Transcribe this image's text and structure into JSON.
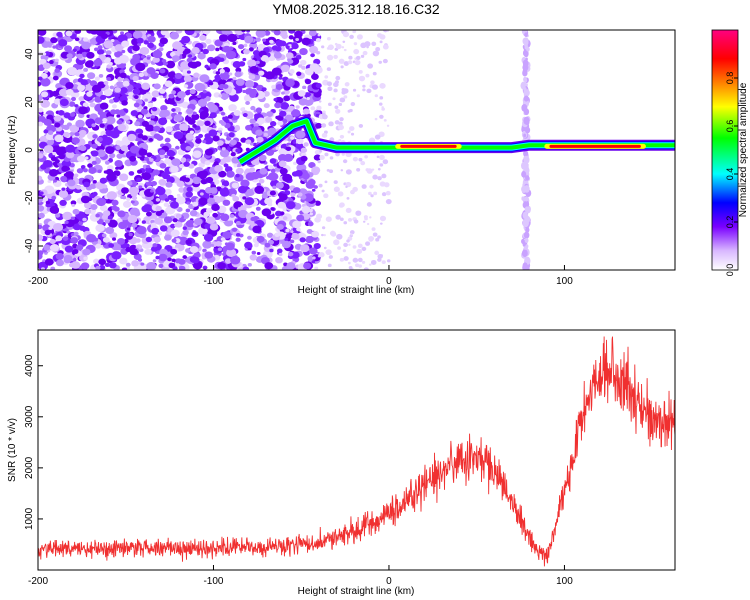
{
  "title": "YM08.2025.312.18.16.C32",
  "chart_data": [
    {
      "type": "heatmap",
      "xlabel": "Height of straight line (km)",
      "ylabel": "Frequency (Hz)",
      "xlim": [
        -200,
        163
      ],
      "ylim": [
        -50,
        50
      ],
      "xticks": [
        "-200",
        "-100",
        "0",
        "100"
      ],
      "yticks": [
        "-40",
        "-20",
        "0",
        "20",
        "40"
      ],
      "colorbar": {
        "label": "Normalized spectral amplitude",
        "range": [
          0,
          1
        ],
        "ticks": [
          "0.0",
          "0.2",
          "0.4",
          "0.6",
          "0.8"
        ],
        "colormap": [
          "#ffffff",
          "#d9b8ff",
          "#7a00ff",
          "#0000ff",
          "#00ffff",
          "#00ff00",
          "#ffff00",
          "#ff8000",
          "#ff0000",
          "#ff0080"
        ]
      },
      "ridge": {
        "description_points": [
          [
            -85,
            -5
          ],
          [
            -65,
            4
          ],
          [
            -55,
            10
          ],
          [
            -47,
            12
          ],
          [
            -42,
            3
          ],
          [
            -30,
            1
          ],
          [
            -10,
            1
          ],
          [
            0,
            1
          ],
          [
            40,
            1
          ],
          [
            70,
            1
          ],
          [
            80,
            2
          ],
          [
            120,
            2
          ],
          [
            163,
            2
          ]
        ],
        "peak_segments": [
          [
            5,
            40
          ],
          [
            90,
            145
          ]
        ]
      },
      "vertical_stripe_x": 78
    },
    {
      "type": "line",
      "xlabel": "Height of straight line (km)",
      "ylabel": "SNR (10 * v/v)",
      "xlim": [
        -200,
        163
      ],
      "ylim": [
        0,
        4700
      ],
      "xticks": [
        "-200",
        "-100",
        "0",
        "100"
      ],
      "yticks": [
        "1000",
        "2000",
        "3000",
        "4000"
      ],
      "color": "#f03030",
      "envelope": {
        "x": [
          -200,
          -150,
          -100,
          -60,
          -40,
          -20,
          0,
          20,
          35,
          45,
          55,
          65,
          75,
          85,
          90,
          100,
          110,
          120,
          125,
          135,
          150,
          163
        ],
        "y": [
          400,
          420,
          430,
          450,
          550,
          750,
          1100,
          1650,
          2050,
          2200,
          2100,
          1700,
          1000,
          350,
          250,
          1500,
          3000,
          3900,
          4000,
          3600,
          2900,
          2900
        ]
      }
    }
  ]
}
